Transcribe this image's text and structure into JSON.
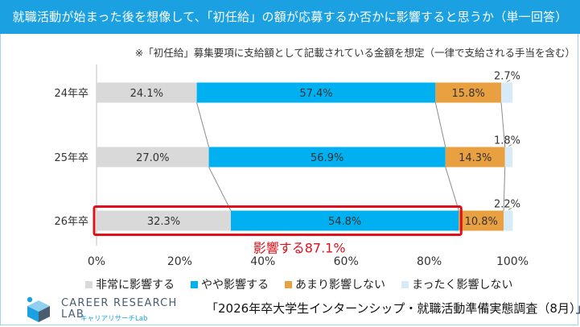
{
  "header": {
    "title": "就職活動が始まった後を想像して、「初任給」の額が応募するか否かに影響すると思うか（単一回答）"
  },
  "note": "※「初任給」募集要項に支給額として記載されている金額を想定（一律で支給される手当を含む）",
  "colors": {
    "title_bg": "#1ba1e2",
    "series": [
      "#d9d9d9",
      "#00b0f0",
      "#e8a040",
      "#d6ebf7"
    ],
    "highlight": "#e0101a",
    "connector": "#8c8c8c"
  },
  "chart_data": {
    "type": "bar",
    "orientation": "horizontal-stacked-100",
    "categories": [
      "24年卒",
      "25年卒",
      "26年卒"
    ],
    "series": [
      {
        "name": "非常に影響する",
        "values": [
          24.1,
          27.0,
          32.3
        ],
        "labels": [
          "24.1%",
          "27.0%",
          "32.3%"
        ]
      },
      {
        "name": "やや影響する",
        "values": [
          57.4,
          56.9,
          54.8
        ],
        "labels": [
          "57.4%",
          "56.9%",
          "54.8%"
        ]
      },
      {
        "name": "あまり影響しない",
        "values": [
          15.8,
          14.3,
          10.8
        ],
        "labels": [
          "15.8%",
          "14.3%",
          "10.8%"
        ]
      },
      {
        "name": "まったく影響しない",
        "values": [
          2.7,
          1.8,
          2.2
        ],
        "labels": [
          "2.7%",
          "1.8%",
          "2.2%"
        ]
      }
    ],
    "xticks": [
      "0%",
      "20%",
      "40%",
      "60%",
      "80%",
      "100%"
    ],
    "xlim": [
      0,
      100
    ],
    "highlight_category": "26年卒",
    "highlight_label": "影響する87.1%",
    "legend": "bottom"
  },
  "footer": {
    "survey": "「2026年卒大学生インターンシップ・就職活動準備実態調査（8月）」",
    "logo_line1": "CAREER RESEARCH",
    "logo_line2": "LAB",
    "logo_sub": "キャリアリサーチLab"
  }
}
